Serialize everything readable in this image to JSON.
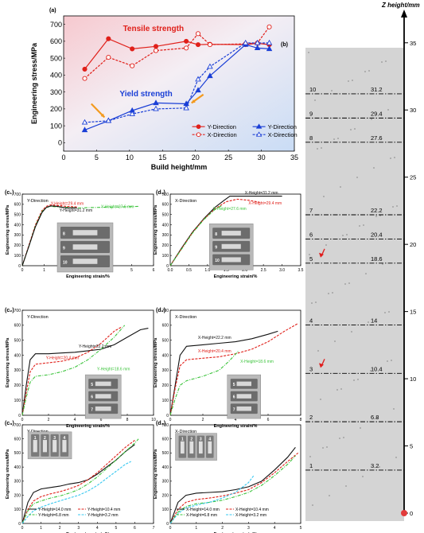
{
  "colors": {
    "red": "#e0201a",
    "blue": "#1a3fd6",
    "green": "#3cc43c",
    "black": "#111111",
    "cyan": "#37c8f0",
    "orange": "#f39a1e",
    "panel_bg": "#d4d4d4",
    "photo": "#b9b9b9"
  },
  "chart_data": [
    {
      "id": "a",
      "panel_label": "(a)",
      "type": "line",
      "xlabel": "Build height/mm",
      "ylabel": "Engineering stress/MPa",
      "xlim": [
        0,
        35
      ],
      "ylim": [
        -50,
        750
      ],
      "xticks": [
        0,
        5,
        10,
        15,
        20,
        25,
        30,
        35
      ],
      "yticks": [
        0,
        100,
        200,
        300,
        400,
        500,
        600,
        700
      ],
      "annotations": [
        "Tensile strength",
        "Yield strength"
      ],
      "legend_position": "bottom-right",
      "series": [
        {
          "name": "Y-Direction",
          "group": "tensile",
          "color": "red",
          "dash": false,
          "marker": "circle",
          "x": [
            3.2,
            6.8,
            10.4,
            14,
            18.6,
            20.4,
            22.2,
            27.6,
            29.4,
            31.2
          ],
          "y": [
            435,
            615,
            555,
            570,
            600,
            580,
            582,
            580,
            588,
            580
          ]
        },
        {
          "name": "X-Direction",
          "group": "tensile",
          "color": "red",
          "dash": true,
          "marker": "circle-open",
          "x": [
            3.2,
            6.8,
            10.4,
            14,
            18.6,
            20.4,
            22.2,
            27.6,
            29.4,
            31.2
          ],
          "y": [
            380,
            505,
            455,
            545,
            560,
            645,
            580,
            585,
            590,
            685
          ]
        },
        {
          "name": "Y-Direction",
          "group": "yield",
          "color": "blue",
          "dash": false,
          "marker": "triangle",
          "x": [
            3.2,
            6.8,
            10.4,
            14,
            18.6,
            20.4,
            22.2,
            27.6,
            29.4,
            31.2
          ],
          "y": [
            75,
            130,
            190,
            235,
            230,
            310,
            395,
            580,
            560,
            555
          ]
        },
        {
          "name": "X-Direction",
          "group": "yield",
          "color": "blue",
          "dash": true,
          "marker": "triangle-open",
          "x": [
            3.2,
            6.8,
            10.4,
            14,
            18.6,
            20.4,
            22.2,
            27.6,
            29.4,
            31.2
          ],
          "y": [
            120,
            130,
            170,
            200,
            205,
            375,
            450,
            590,
            590,
            590
          ]
        }
      ]
    },
    {
      "id": "c1",
      "panel_label": "(c₁)",
      "title": "Y-Direction",
      "type": "line",
      "xlabel": "Engineering strain/%",
      "ylabel": "Engineering stress/MPa",
      "xlim": [
        0,
        6
      ],
      "ylim": [
        0,
        700
      ],
      "xticks": [
        0,
        1,
        2,
        3,
        4,
        5,
        6
      ],
      "yticks": [
        0,
        100,
        200,
        300,
        400,
        500,
        600,
        700
      ],
      "series": [
        {
          "name": "Y-Height=29.4 mm",
          "color": "red",
          "dash": true,
          "x": [
            0,
            0.3,
            0.6,
            0.9,
            1.1,
            1.3,
            1.5,
            2.0,
            2.5
          ],
          "y": [
            0,
            200,
            400,
            540,
            580,
            595,
            590,
            580,
            575
          ]
        },
        {
          "name": "Y-Height=27.6 mm",
          "color": "green",
          "dash": true,
          "x": [
            0,
            0.3,
            0.6,
            0.9,
            1.1,
            1.3,
            1.6,
            2.5,
            3.5,
            4.5,
            5.3
          ],
          "y": [
            0,
            190,
            390,
            530,
            570,
            580,
            575,
            565,
            570,
            575,
            580
          ]
        },
        {
          "name": "Y-Height=31.2 mm",
          "color": "black",
          "dash": false,
          "x": [
            0,
            0.3,
            0.6,
            0.9,
            1.1,
            1.3,
            1.6,
            2.0,
            2.5
          ],
          "y": [
            0,
            190,
            380,
            520,
            570,
            585,
            580,
            565,
            565
          ]
        }
      ]
    },
    {
      "id": "d1",
      "panel_label": "(d₁)",
      "title": "X-Direction",
      "type": "line",
      "xlabel": "Engineering strain/%",
      "ylabel": "Engineering stress/MPa",
      "xlim": [
        0,
        3.5
      ],
      "ylim": [
        0,
        700
      ],
      "xticks": [
        0,
        0.5,
        1.0,
        1.5,
        2.0,
        2.5,
        3.0,
        3.5
      ],
      "yticks": [
        0,
        100,
        200,
        300,
        400,
        500,
        600,
        700
      ],
      "series": [
        {
          "name": "X-Height=31.2 mm",
          "color": "black",
          "dash": false,
          "x": [
            0,
            0.3,
            0.6,
            0.9,
            1.2,
            1.45,
            1.6,
            3.0
          ],
          "y": [
            0,
            170,
            330,
            460,
            570,
            640,
            680,
            680
          ]
        },
        {
          "name": "X-Height=29.4 mm",
          "color": "red",
          "dash": true,
          "x": [
            0,
            0.3,
            0.6,
            0.9,
            1.2,
            1.5,
            1.8,
            2.1,
            2.4
          ],
          "y": [
            0,
            165,
            325,
            455,
            555,
            625,
            650,
            640,
            620
          ]
        },
        {
          "name": "X-Height=27.6 mm",
          "color": "green",
          "dash": true,
          "x": [
            0,
            0.3,
            0.6,
            0.9,
            1.2,
            1.4
          ],
          "y": [
            0,
            160,
            320,
            450,
            550,
            590
          ]
        }
      ]
    },
    {
      "id": "c2",
      "panel_label": "(c₂)",
      "title": "Y-Direction",
      "type": "line",
      "xlabel": "Engineering strain/%",
      "ylabel": "Engineering stress/MPa",
      "xlim": [
        0,
        10
      ],
      "ylim": [
        0,
        700
      ],
      "xticks": [
        0,
        2,
        4,
        6,
        8,
        10
      ],
      "yticks": [
        0,
        100,
        200,
        300,
        400,
        500,
        600,
        700
      ],
      "series": [
        {
          "name": "Y-Height=22.2 mm",
          "color": "black",
          "dash": false,
          "x": [
            0,
            0.3,
            0.6,
            1.0,
            2,
            3,
            4,
            5,
            6,
            7,
            8,
            9,
            9.6
          ],
          "y": [
            0,
            200,
            370,
            410,
            410,
            415,
            420,
            430,
            440,
            470,
            520,
            570,
            580
          ]
        },
        {
          "name": "Y-Height=20.4 mm",
          "color": "red",
          "dash": true,
          "x": [
            0,
            0.3,
            0.6,
            1.0,
            2,
            3,
            4,
            5,
            6,
            7,
            7.6
          ],
          "y": [
            0,
            150,
            290,
            340,
            350,
            360,
            380,
            420,
            480,
            560,
            590
          ]
        },
        {
          "name": "Y-Height=18.6 mm",
          "color": "green",
          "dash": true,
          "x": [
            0,
            0.3,
            0.6,
            1.0,
            2,
            3,
            4,
            5,
            6,
            7,
            7.8
          ],
          "y": [
            0,
            120,
            220,
            260,
            270,
            290,
            320,
            370,
            440,
            520,
            600
          ]
        }
      ]
    },
    {
      "id": "d2",
      "panel_label": "(d₂)",
      "title": "X-Direction",
      "type": "line",
      "xlabel": "Engineering strain/%",
      "ylabel": "Engineering stress/MPa",
      "xlim": [
        0,
        8
      ],
      "ylim": [
        0,
        700
      ],
      "xticks": [
        0,
        2,
        4,
        6,
        8
      ],
      "yticks": [
        0,
        100,
        200,
        300,
        400,
        500,
        600,
        700
      ],
      "series": [
        {
          "name": "X-Height=22.2 mm",
          "color": "black",
          "dash": false,
          "x": [
            0,
            0.3,
            0.6,
            1.0,
            2,
            3,
            4,
            5,
            6,
            6.6
          ],
          "y": [
            0,
            200,
            400,
            460,
            470,
            480,
            490,
            510,
            540,
            560
          ]
        },
        {
          "name": "X-Height=20.4 mm",
          "color": "red",
          "dash": true,
          "x": [
            0,
            0.3,
            0.6,
            1.0,
            2,
            3,
            4,
            5,
            6,
            7,
            7.8
          ],
          "y": [
            0,
            180,
            330,
            370,
            380,
            390,
            410,
            440,
            490,
            560,
            610
          ]
        },
        {
          "name": "X-Height=18.6 mm",
          "color": "green",
          "dash": true,
          "x": [
            0,
            0.3,
            0.6,
            1.0,
            2,
            3,
            3.6,
            4.2
          ],
          "y": [
            0,
            110,
            200,
            230,
            260,
            300,
            360,
            430
          ]
        }
      ]
    },
    {
      "id": "c3",
      "panel_label": "(c₃)",
      "title": "Y-Direction",
      "type": "line",
      "xlabel": "Engineering strain/%",
      "ylabel": "Engineering stress/MPa",
      "xlim": [
        0,
        7
      ],
      "ylim": [
        0,
        700
      ],
      "xticks": [
        0,
        1,
        2,
        3,
        4,
        5,
        6,
        7
      ],
      "yticks": [
        0,
        100,
        200,
        300,
        400,
        500,
        600,
        700
      ],
      "series": [
        {
          "name": "Y-Height=14.0 mm",
          "color": "black",
          "dash": false,
          "x": [
            0,
            0.3,
            0.6,
            1.0,
            1.5,
            2,
            2.5,
            3,
            3.5,
            4,
            4.5,
            5,
            5.5,
            6
          ],
          "y": [
            0,
            150,
            220,
            245,
            255,
            265,
            280,
            290,
            310,
            350,
            400,
            450,
            510,
            560
          ]
        },
        {
          "name": "Y-Height=10.4 mm",
          "color": "red",
          "dash": true,
          "x": [
            0,
            0.3,
            0.6,
            1.0,
            1.5,
            2,
            2.5,
            3,
            3.5,
            4,
            4.5,
            5,
            5.5,
            6
          ],
          "y": [
            0,
            100,
            160,
            190,
            210,
            225,
            245,
            270,
            310,
            360,
            420,
            480,
            540,
            590
          ]
        },
        {
          "name": "Y-Height=6.8 mm",
          "color": "green",
          "dash": true,
          "x": [
            0,
            0.3,
            0.6,
            1.0,
            1.5,
            2,
            2.5,
            3,
            3.5,
            4,
            4.5,
            5,
            5.5,
            6,
            6.2
          ],
          "y": [
            0,
            90,
            140,
            160,
            180,
            195,
            215,
            240,
            280,
            330,
            390,
            450,
            510,
            570,
            600
          ]
        },
        {
          "name": "Y-Height=3.2 mm",
          "color": "cyan",
          "dash": true,
          "x": [
            0,
            0.3,
            0.6,
            1.0,
            1.5,
            2,
            2.5,
            3,
            3.5,
            4,
            4.5,
            5,
            5.5,
            5.8
          ],
          "y": [
            0,
            50,
            90,
            115,
            140,
            160,
            180,
            200,
            230,
            270,
            320,
            370,
            420,
            440
          ]
        }
      ]
    },
    {
      "id": "d3",
      "panel_label": "(d₃)",
      "title": "X-Direction",
      "type": "line",
      "xlabel": "Engineering strain/%",
      "ylabel": "Engineering stress/MPa",
      "xlim": [
        0,
        5
      ],
      "ylim": [
        0,
        700
      ],
      "xticks": [
        0,
        1,
        2,
        3,
        4,
        5
      ],
      "yticks": [
        0,
        100,
        200,
        300,
        400,
        500,
        600,
        700
      ],
      "series": [
        {
          "name": "X-Height=14.0 mm",
          "color": "black",
          "dash": false,
          "x": [
            0,
            0.3,
            0.6,
            1.0,
            1.5,
            2,
            2.5,
            3,
            3.5,
            4,
            4.5,
            4.8
          ],
          "y": [
            0,
            150,
            200,
            215,
            220,
            225,
            240,
            260,
            300,
            380,
            470,
            540
          ]
        },
        {
          "name": "X-Height=10.4 mm",
          "color": "red",
          "dash": true,
          "x": [
            0,
            0.3,
            0.6,
            1.0,
            1.5,
            2,
            2.5,
            3,
            3.5,
            4,
            4.5,
            4.9
          ],
          "y": [
            0,
            100,
            150,
            170,
            180,
            195,
            215,
            240,
            290,
            360,
            440,
            500
          ]
        },
        {
          "name": "X-Height=6.8 mm",
          "color": "green",
          "dash": true,
          "x": [
            0,
            0.3,
            0.6,
            1.0,
            1.5,
            2,
            2.5,
            3,
            3.5,
            4,
            4.5,
            4.8
          ],
          "y": [
            0,
            80,
            120,
            140,
            150,
            165,
            190,
            220,
            270,
            340,
            420,
            480
          ]
        },
        {
          "name": "X-Height=3.2 mm",
          "color": "cyan",
          "dash": true,
          "x": [
            0,
            0.3,
            0.6,
            1.0,
            1.5,
            2,
            2.5,
            3,
            3.2
          ],
          "y": [
            0,
            70,
            110,
            130,
            150,
            180,
            220,
            290,
            340
          ]
        }
      ]
    },
    {
      "id": "b",
      "panel_label": "(b)",
      "type": "diagram",
      "axis_label": "Z height/mm",
      "zlim": [
        0,
        37
      ],
      "zticks": [
        0,
        5,
        10,
        15,
        20,
        25,
        30,
        35
      ],
      "layers": [
        {
          "index": "1",
          "z": 3.2,
          "label": "3.2"
        },
        {
          "index": "2",
          "z": 6.8,
          "label": "6.8"
        },
        {
          "index": "3",
          "z": 10.4,
          "label": "10.4"
        },
        {
          "index": "4",
          "z": 14,
          "label": "14"
        },
        {
          "index": "5",
          "z": 18.6,
          "label": "18.6"
        },
        {
          "index": "6",
          "z": 20.4,
          "label": "20.4"
        },
        {
          "index": "7",
          "z": 22.2,
          "label": "22.2"
        },
        {
          "index": "8",
          "z": 27.6,
          "label": "27.6"
        },
        {
          "index": "9",
          "z": 29.4,
          "label": "29.4"
        },
        {
          "index": "10",
          "z": 31.2,
          "label": "31.2"
        }
      ]
    }
  ],
  "photo_labels": {
    "c1": [
      "8",
      "9",
      "10"
    ],
    "d1": [
      "8",
      "9",
      "10"
    ],
    "c2": [
      "5",
      "6",
      "7"
    ],
    "d2": [
      "5",
      "6",
      "7"
    ],
    "c3": [
      "1",
      "2",
      "3",
      "4"
    ],
    "d3": [
      "1",
      "2",
      "3",
      "4"
    ]
  }
}
